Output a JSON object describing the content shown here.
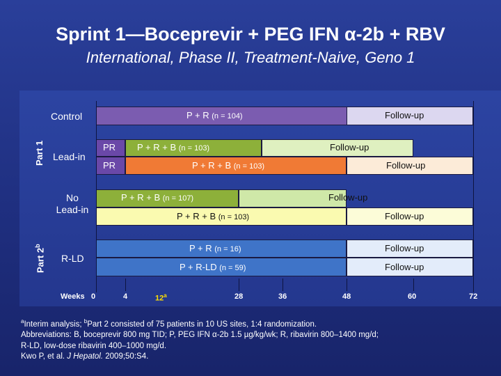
{
  "title": "Sprint 1—Boceprevir  + PEG IFN α-2b + RBV",
  "subtitle": "International, Phase II, Treatment-Naive, Geno 1",
  "parts": {
    "part1": "Part 1",
    "part2_main": "Part 2",
    "part2_sup": "b"
  },
  "row_labels": {
    "control": "Control",
    "leadin": "Lead-in",
    "no_leadin_1": "No",
    "no_leadin_2": "Lead-in",
    "rld": "R-LD"
  },
  "bars": {
    "control": {
      "main": "P + R",
      "n": "(n = 104)",
      "followup": "Follow-up"
    },
    "leadin_pr_1": "PR",
    "leadin_pr_2": "PR",
    "leadin_1": {
      "main": "P + R + B",
      "n": "(n = 103)",
      "followup": "Follow-up"
    },
    "leadin_2": {
      "main": "P + R + B",
      "n": "(n = 103)",
      "followup": "Follow-up"
    },
    "noleadin_1": {
      "main": "P + R + B",
      "n": "(n = 107)",
      "followup": "Follow-up"
    },
    "noleadin_2": {
      "main": "P + R + B",
      "n": "(n = 103)",
      "followup": "Follow-up"
    },
    "rld_1": {
      "main": "P + R",
      "n": "(n = 16)",
      "followup": "Follow-up"
    },
    "rld_2": {
      "main": "P + R-LD",
      "n": "(n = 59)",
      "followup": "Follow-up"
    }
  },
  "axis": {
    "label": "Weeks",
    "ticks": [
      "0",
      "4",
      "12",
      "28",
      "36",
      "48",
      "60",
      "72"
    ],
    "tick_12_sup": "a"
  },
  "colors": {
    "purple": "#7b5cb0",
    "dark_purple": "#6a48a8",
    "light_purple": "#b9a9dd",
    "olive": "#8db03a",
    "orange": "#f07a35",
    "light_green": "#dff0c0",
    "light_green2": "#cfe8a8",
    "pale_yellow": "#fafab0",
    "blue": "#3f74c8",
    "pale_blue": "#e3ecfa",
    "lavender": "#dcd7f0"
  },
  "footnote": {
    "line1_sup_a": "a",
    "line1_a": "Interim analysis; ",
    "line1_sup_b": "b",
    "line1_b": "Part 2 consisted of 75 patients in 10 US sites, 1:4 randomization.",
    "line2": "Abbreviations: B, boceprevir 800 mg TID; P, PEG IFN α-2b 1.5 µg/kg/wk; R, ribavirin 800–1400 mg/d;",
    "line3": "R-LD, low-dose ribavirin 400–1000 mg/d.",
    "line4_a": "Kwo P, et al. ",
    "line4_b": "J Hepatol.",
    "line4_c": " 2009;50:S4."
  }
}
